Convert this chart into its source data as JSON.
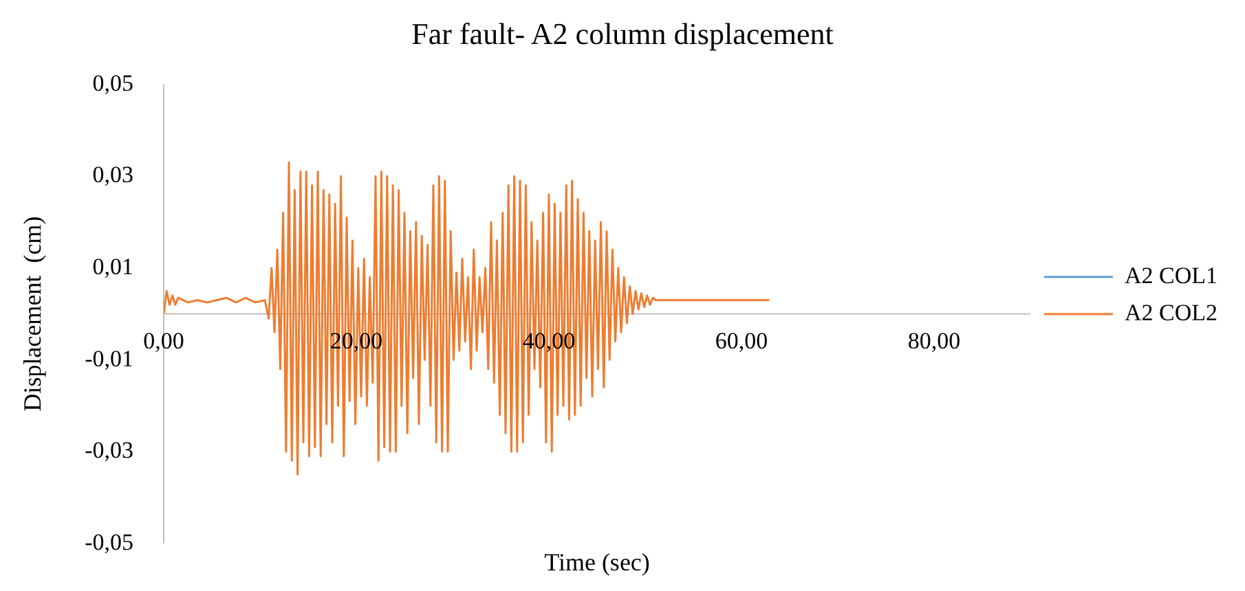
{
  "chart_data": {
    "type": "line",
    "title": "Far fault- A2 column displacement",
    "xlabel": "Time (sec)",
    "ylabel": "Displacement  (cm)",
    "xlim": [
      0,
      90
    ],
    "xticks": [
      {
        "value": 0,
        "label": "0,00"
      },
      {
        "value": 20,
        "label": "20,00"
      },
      {
        "value": 40,
        "label": "40,00"
      },
      {
        "value": 60,
        "label": "60,00"
      },
      {
        "value": 80,
        "label": "80,00"
      }
    ],
    "ylim": [
      -0.05,
      0.05
    ],
    "yticks": [
      {
        "value": -0.05,
        "label": "-0,05"
      },
      {
        "value": -0.03,
        "label": "-0,03"
      },
      {
        "value": -0.01,
        "label": "-0,01"
      },
      {
        "value": 0.01,
        "label": "0,01"
      },
      {
        "value": 0.03,
        "label": "0,03"
      },
      {
        "value": 0.05,
        "label": "0,05"
      }
    ],
    "grid": false,
    "legend": "right",
    "marker": "none",
    "line_style": "solid",
    "x": [
      0,
      0.3,
      0.6,
      0.9,
      1.2,
      1.5,
      2.5,
      3.5,
      4.5,
      5.5,
      6.5,
      7.5,
      8.5,
      9.5,
      10.5,
      10.9,
      11.2,
      11.5,
      11.8,
      12.1,
      12.4,
      12.7,
      13.0,
      13.3,
      13.6,
      13.9,
      14.2,
      14.5,
      14.8,
      15.1,
      15.4,
      15.7,
      16.0,
      16.3,
      16.6,
      16.9,
      17.2,
      17.5,
      17.8,
      18.1,
      18.4,
      18.7,
      19.0,
      19.3,
      19.6,
      19.9,
      20.2,
      20.5,
      20.8,
      21.1,
      21.4,
      21.7,
      22.0,
      22.3,
      22.6,
      22.9,
      23.2,
      23.5,
      23.8,
      24.1,
      24.4,
      24.7,
      25.0,
      25.3,
      25.6,
      25.9,
      26.2,
      26.5,
      26.8,
      27.1,
      27.4,
      27.7,
      28.0,
      28.3,
      28.6,
      28.9,
      29.2,
      29.5,
      29.8,
      30.1,
      30.4,
      30.7,
      31.0,
      31.3,
      31.6,
      31.9,
      32.2,
      32.5,
      32.8,
      33.1,
      33.4,
      33.7,
      34.0,
      34.3,
      34.6,
      34.9,
      35.2,
      35.5,
      35.8,
      36.1,
      36.4,
      36.7,
      37.0,
      37.3,
      37.6,
      37.9,
      38.2,
      38.5,
      38.8,
      39.1,
      39.4,
      39.7,
      40.0,
      40.3,
      40.6,
      40.9,
      41.2,
      41.5,
      41.8,
      42.1,
      42.4,
      42.7,
      43.0,
      43.3,
      43.6,
      43.9,
      44.2,
      44.5,
      44.8,
      45.1,
      45.4,
      45.7,
      46.0,
      46.3,
      46.6,
      46.9,
      47.2,
      47.5,
      47.8,
      48.1,
      48.4,
      48.7,
      49.0,
      49.3,
      49.6,
      49.9,
      50.2,
      50.5,
      50.8,
      51.1,
      51.6,
      52.5,
      54,
      55.5,
      57,
      58.5,
      60,
      61.5,
      62.9
    ],
    "series": [
      {
        "name": "A2 COL1",
        "color": "#5b9bd5",
        "values": [
          null,
          null,
          null,
          null,
          null,
          null,
          null,
          null,
          null,
          null,
          null,
          null,
          null,
          null,
          null,
          null,
          null,
          null,
          null,
          null,
          null,
          null,
          null,
          null,
          null,
          null,
          null,
          null,
          null,
          null,
          null,
          null,
          null,
          null,
          null,
          null,
          null,
          null,
          null,
          null,
          null,
          null,
          null,
          null,
          null,
          null,
          null,
          null,
          null,
          null,
          null,
          null,
          null,
          null,
          null,
          null,
          null,
          null,
          null,
          null,
          null,
          null,
          null,
          null,
          null,
          null,
          null,
          null,
          null,
          null,
          null,
          null,
          null,
          null,
          null,
          null,
          null,
          null,
          null,
          null,
          null,
          null,
          null,
          null,
          null,
          null,
          null,
          null,
          null,
          null,
          null,
          null,
          null,
          null,
          null,
          null,
          null,
          null,
          null,
          null,
          null,
          null,
          null,
          null,
          null,
          null,
          null,
          null,
          null,
          null,
          null,
          null,
          null,
          null,
          null,
          null,
          null,
          null,
          null,
          null,
          null,
          null,
          null,
          null,
          null,
          null,
          null,
          null,
          null,
          null,
          null,
          null,
          null,
          null,
          null,
          null,
          null,
          null,
          null,
          null,
          null,
          null,
          null,
          null,
          null,
          null,
          null,
          null,
          null,
          null,
          null,
          null,
          null,
          null,
          null,
          null,
          null,
          null,
          null
        ]
      },
      {
        "name": "A2 COL2",
        "color": "#ed7d31",
        "values": [
          0,
          0.005,
          0.002,
          0.004,
          0.002,
          0.0035,
          0.0025,
          0.003,
          0.0025,
          0.003,
          0.0035,
          0.0025,
          0.0035,
          0.0025,
          0.003,
          -0.001,
          0.01,
          -0.004,
          0.014,
          -0.012,
          0.022,
          -0.03,
          0.033,
          -0.032,
          0.027,
          -0.035,
          0.031,
          -0.028,
          0.031,
          -0.031,
          0.028,
          -0.029,
          0.031,
          -0.031,
          0.027,
          -0.024,
          0.026,
          -0.028,
          0.024,
          -0.02,
          0.03,
          -0.031,
          0.021,
          -0.019,
          0.016,
          -0.024,
          0.01,
          -0.018,
          0.012,
          -0.02,
          0.008,
          -0.015,
          0.03,
          -0.032,
          0.031,
          -0.029,
          0.03,
          -0.03,
          0.028,
          -0.03,
          0.027,
          -0.02,
          0.022,
          -0.026,
          0.018,
          -0.014,
          0.02,
          -0.024,
          0.017,
          -0.01,
          0.015,
          -0.02,
          0.028,
          -0.028,
          0.03,
          -0.03,
          0.029,
          -0.03,
          0.018,
          -0.01,
          0.009,
          -0.008,
          0.012,
          -0.006,
          0.008,
          -0.012,
          0.014,
          -0.008,
          0.008,
          -0.004,
          0.01,
          -0.012,
          0.02,
          -0.015,
          0.016,
          -0.022,
          0.022,
          -0.026,
          0.028,
          -0.03,
          0.03,
          -0.03,
          0.029,
          -0.028,
          0.028,
          -0.022,
          0.02,
          -0.012,
          0.016,
          -0.016,
          0.022,
          -0.028,
          0.026,
          -0.03,
          0.024,
          -0.022,
          0.022,
          -0.02,
          0.028,
          -0.023,
          0.029,
          -0.022,
          0.025,
          -0.02,
          0.022,
          -0.014,
          0.018,
          -0.018,
          0.016,
          -0.012,
          0.02,
          -0.016,
          0.018,
          -0.01,
          0.014,
          -0.006,
          0.01,
          -0.004,
          0.008,
          -0.002,
          0.006,
          0.0,
          0.005,
          0.001,
          0.0045,
          0.0015,
          0.004,
          0.002,
          0.0035,
          0.003,
          0.003,
          0.003,
          0.003,
          0.003,
          0.003,
          0.003,
          0.003,
          0.003,
          0.003
        ]
      }
    ]
  }
}
